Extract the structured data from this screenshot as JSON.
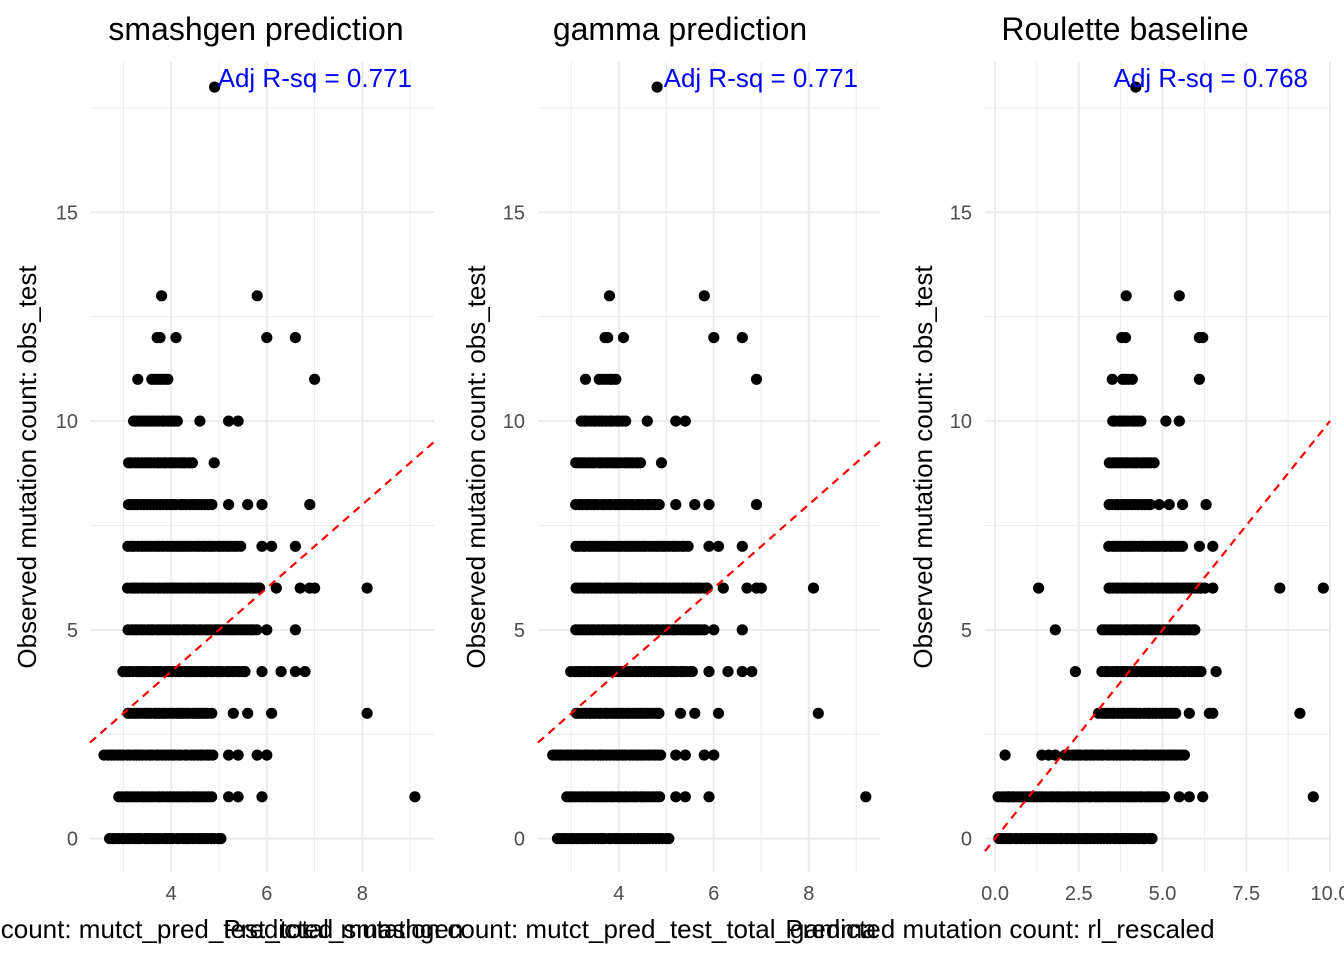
{
  "colors": {
    "points": "#000000",
    "ref_line": "#ff0000",
    "annotation": "#0000ff",
    "grid": "#ebebeb",
    "tick_text": "#4d4d4d"
  },
  "chart_data": [
    {
      "type": "scatter",
      "title": "smashgen prediction",
      "annotation": "Adj R-sq = 0.771",
      "xlabel": "Predicted mutation count: mutct_pred_test_total_smashgen",
      "ylabel": "Observed mutation count: obs_test",
      "xlim": [
        2.3,
        9.5
      ],
      "ylim": [
        -0.8,
        18.6
      ],
      "xticks": [
        4,
        6,
        8
      ],
      "xtick_labels": [
        "4",
        "6",
        "8"
      ],
      "yticks": [
        0,
        5,
        10,
        15
      ],
      "ytick_labels": [
        "0",
        "5",
        "10",
        "15"
      ],
      "reference_line": "y = x",
      "grid": true,
      "rows": [
        {
          "y": 0,
          "x": [
            2.7,
            5.1
          ],
          "extra": []
        },
        {
          "y": 1,
          "x": [
            2.9,
            4.9
          ],
          "extra": [
            5.2,
            5.4,
            5.9,
            9.1
          ]
        },
        {
          "y": 2,
          "x": [
            2.6,
            4.9
          ],
          "extra": [
            5.2,
            5.4,
            5.8,
            6.0
          ]
        },
        {
          "y": 3,
          "x": [
            3.1,
            4.9
          ],
          "extra": [
            5.3,
            5.6,
            6.1,
            8.1
          ]
        },
        {
          "y": 4,
          "x": [
            3.0,
            5.6
          ],
          "extra": [
            5.9,
            6.3,
            6.6,
            6.8
          ]
        },
        {
          "y": 5,
          "x": [
            3.1,
            5.8
          ],
          "extra": [
            6.0,
            6.6
          ]
        },
        {
          "y": 6,
          "x": [
            3.1,
            5.9
          ],
          "extra": [
            6.2,
            6.7,
            6.9,
            7.0,
            8.1
          ]
        },
        {
          "y": 7,
          "x": [
            3.1,
            5.5
          ],
          "extra": [
            5.9,
            6.1,
            6.6
          ]
        },
        {
          "y": 8,
          "x": [
            3.1,
            4.9
          ],
          "extra": [
            5.2,
            5.6,
            5.9,
            6.9
          ]
        },
        {
          "y": 9,
          "x": [
            3.1,
            4.5
          ],
          "extra": [
            4.9
          ]
        },
        {
          "y": 10,
          "x": [
            3.2,
            4.2
          ],
          "extra": [
            4.6,
            5.2,
            5.4
          ]
        },
        {
          "y": 11,
          "x": [
            3.6,
            4.0
          ],
          "extra": [
            3.3,
            7.0
          ]
        },
        {
          "y": 12,
          "x": [
            3.7,
            3.8
          ],
          "extra": [
            4.1,
            6.0,
            6.6
          ]
        },
        {
          "y": 13,
          "x": [
            3.8,
            3.8
          ],
          "extra": [
            5.8
          ]
        },
        {
          "y": 18,
          "x": [
            4.9,
            4.9
          ],
          "extra": []
        }
      ]
    },
    {
      "type": "scatter",
      "title": "gamma prediction",
      "annotation": "Adj R-sq = 0.771",
      "xlabel": "Predicted mutation count: mutct_pred_test_total_gamma",
      "ylabel": "Observed mutation count: obs_test",
      "xlim": [
        2.3,
        9.5
      ],
      "ylim": [
        -0.8,
        18.6
      ],
      "xticks": [
        4,
        6,
        8
      ],
      "xtick_labels": [
        "4",
        "6",
        "8"
      ],
      "yticks": [
        0,
        5,
        10,
        15
      ],
      "ytick_labels": [
        "0",
        "5",
        "10",
        "15"
      ],
      "reference_line": "y = x",
      "grid": true,
      "rows": [
        {
          "y": 0,
          "x": [
            2.7,
            5.1
          ],
          "extra": []
        },
        {
          "y": 1,
          "x": [
            2.9,
            4.9
          ],
          "extra": [
            5.2,
            5.4,
            5.9,
            9.2
          ]
        },
        {
          "y": 2,
          "x": [
            2.6,
            4.9
          ],
          "extra": [
            5.2,
            5.4,
            5.8,
            6.0
          ]
        },
        {
          "y": 3,
          "x": [
            3.1,
            4.9
          ],
          "extra": [
            5.3,
            5.6,
            6.1,
            8.2
          ]
        },
        {
          "y": 4,
          "x": [
            3.0,
            5.6
          ],
          "extra": [
            5.9,
            6.3,
            6.6,
            6.8
          ]
        },
        {
          "y": 5,
          "x": [
            3.1,
            5.8
          ],
          "extra": [
            6.0,
            6.6
          ]
        },
        {
          "y": 6,
          "x": [
            3.1,
            5.9
          ],
          "extra": [
            6.2,
            6.7,
            6.9,
            7.0,
            8.1
          ]
        },
        {
          "y": 7,
          "x": [
            3.1,
            5.5
          ],
          "extra": [
            5.9,
            6.1,
            6.6
          ]
        },
        {
          "y": 8,
          "x": [
            3.1,
            4.9
          ],
          "extra": [
            5.2,
            5.6,
            5.9,
            6.9
          ]
        },
        {
          "y": 9,
          "x": [
            3.1,
            4.5
          ],
          "extra": [
            4.9
          ]
        },
        {
          "y": 10,
          "x": [
            3.2,
            4.2
          ],
          "extra": [
            4.6,
            5.2,
            5.4
          ]
        },
        {
          "y": 11,
          "x": [
            3.6,
            4.0
          ],
          "extra": [
            3.3,
            6.9
          ]
        },
        {
          "y": 12,
          "x": [
            3.7,
            3.8
          ],
          "extra": [
            4.1,
            6.0,
            6.6
          ]
        },
        {
          "y": 13,
          "x": [
            3.8,
            3.8
          ],
          "extra": [
            5.8
          ]
        },
        {
          "y": 18,
          "x": [
            4.8,
            4.8
          ],
          "extra": []
        }
      ]
    },
    {
      "type": "scatter",
      "title": "Roulette baseline",
      "annotation": "Adj R-sq = 0.768",
      "xlabel": "Predicted mutation count: rl_rescaled",
      "ylabel": "Observed mutation count: obs_test",
      "xlim": [
        -0.3,
        10.0
      ],
      "ylim": [
        -0.8,
        18.6
      ],
      "xticks": [
        0,
        2.5,
        5,
        7.5,
        10
      ],
      "xtick_labels": [
        "0.0",
        "2.5",
        "5.0",
        "7.5",
        "10.0"
      ],
      "yticks": [
        0,
        5,
        10,
        15
      ],
      "ytick_labels": [
        "0",
        "5",
        "10",
        "15"
      ],
      "reference_line": "y = x",
      "grid": true,
      "rows": [
        {
          "y": 0,
          "x": [
            0.1,
            4.7
          ],
          "extra": []
        },
        {
          "y": 1,
          "x": [
            0.1,
            5.1
          ],
          "extra": [
            0.4,
            5.5,
            5.8,
            6.2,
            9.5
          ]
        },
        {
          "y": 2,
          "x": [
            2.1,
            5.7
          ],
          "extra": [
            0.3,
            1.4,
            1.6,
            1.8
          ]
        },
        {
          "y": 3,
          "x": [
            3.1,
            5.4
          ],
          "extra": [
            5.8,
            6.4,
            6.5,
            9.1
          ]
        },
        {
          "y": 4,
          "x": [
            3.2,
            6.2
          ],
          "extra": [
            2.4,
            6.6
          ]
        },
        {
          "y": 5,
          "x": [
            3.2,
            6.0
          ],
          "extra": [
            1.8
          ]
        },
        {
          "y": 6,
          "x": [
            3.4,
            6.3
          ],
          "extra": [
            1.3,
            6.5,
            8.5,
            9.8
          ]
        },
        {
          "y": 7,
          "x": [
            3.4,
            5.6
          ],
          "extra": [
            6.1,
            6.5
          ]
        },
        {
          "y": 8,
          "x": [
            3.4,
            4.7
          ],
          "extra": [
            4.9,
            5.2,
            5.6,
            6.3
          ]
        },
        {
          "y": 9,
          "x": [
            3.4,
            4.8
          ],
          "extra": []
        },
        {
          "y": 10,
          "x": [
            3.5,
            4.4
          ],
          "extra": [
            5.1,
            5.5
          ]
        },
        {
          "y": 11,
          "x": [
            3.8,
            4.1
          ],
          "extra": [
            3.5,
            6.1
          ]
        },
        {
          "y": 12,
          "x": [
            3.8,
            3.9
          ],
          "extra": [
            6.1,
            6.2
          ]
        },
        {
          "y": 13,
          "x": [
            3.9,
            3.9
          ],
          "extra": [
            5.5
          ]
        },
        {
          "y": 18,
          "x": [
            4.2,
            4.2
          ],
          "extra": []
        }
      ]
    }
  ]
}
